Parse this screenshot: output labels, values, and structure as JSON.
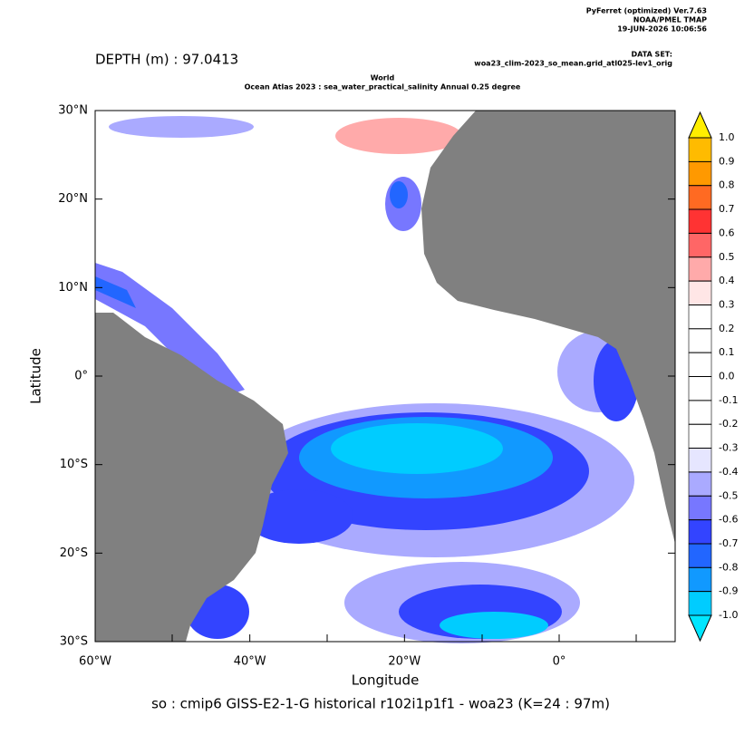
{
  "header": {
    "software": "PyFerret (optimized) Ver.7.63",
    "lab": "NOAA/PMEL TMAP",
    "date": "19-JUN-2026 10:06:56",
    "dataset_label": "DATA SET:",
    "dataset": "woa23_clim-2023_so_mean.grid_atl025-lev1_orig"
  },
  "depth": "DEPTH (m) : 97.0413",
  "title": [
    "World",
    "Ocean Atlas 2023 : sea_water_practical_salinity Annual  0.25 degree"
  ],
  "map": {
    "xlabel": "Longitude",
    "ylabel": "Latitude",
    "xlim": [
      -60,
      15
    ],
    "ylim": [
      -30,
      30
    ],
    "xticks": [
      {
        "value": -60,
        "label": "60°W"
      },
      {
        "value": -40,
        "label": "40°W"
      },
      {
        "value": -20,
        "label": "20°W"
      },
      {
        "value": 0,
        "label": "0°"
      }
    ],
    "yticks": [
      {
        "value": 30,
        "label": "30°N"
      },
      {
        "value": 20,
        "label": "20°N"
      },
      {
        "value": 10,
        "label": "10°N"
      },
      {
        "value": 0,
        "label": "0°"
      },
      {
        "value": -10,
        "label": "10°S"
      },
      {
        "value": -20,
        "label": "20°S"
      },
      {
        "value": -30,
        "label": "30°S"
      }
    ]
  },
  "colorbar": {
    "levels": [
      {
        "value": 1,
        "label": "1.0"
      },
      0.9,
      0.8,
      0.7,
      0.6,
      0.5,
      0.4,
      0.3,
      0.2,
      0.1,
      {
        "value": 0,
        "label": "0.0"
      },
      -0.1,
      -0.2,
      -0.3,
      -0.4,
      -0.5,
      -0.6,
      -0.7,
      -0.8,
      -0.9,
      {
        "value": -1,
        "label": "-1.0"
      }
    ],
    "colors": [
      "#ffee00",
      "#ffbb00",
      "#ff9900",
      "#ff6a22",
      "#ff3333",
      "#ff6666",
      "#ffaaaa",
      "#ffe6e6",
      "#ffffff",
      "#ffffff",
      "#ffffff",
      "#ffffff",
      "#ffffff",
      "#ffffff",
      "#e6e6ff",
      "#aaaaff",
      "#7777ff",
      "#3344ff",
      "#2266ff",
      "#1199ff",
      "#00ccff",
      "#00e6ff"
    ]
  },
  "footer": "so : cmip6 GISS-E2-1-G historical r102i1p1f1 - woa23  (K=24 : 97m)"
}
